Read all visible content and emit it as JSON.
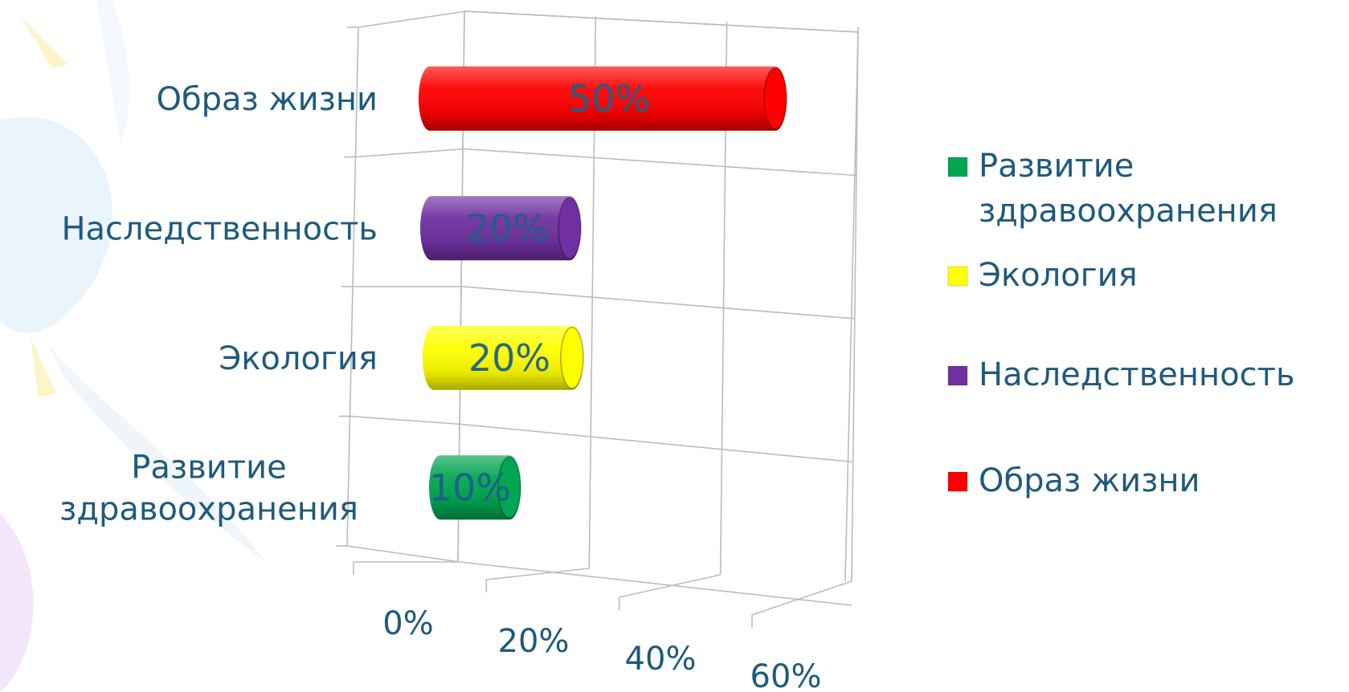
{
  "chart_data": {
    "type": "bar",
    "orientation": "horizontal",
    "style": "3d-cylinder",
    "categories": [
      [
        "Развитие",
        "здравоохранения"
      ],
      [
        "Экология"
      ],
      [
        "Наследственность"
      ],
      [
        "Образ жизни"
      ]
    ],
    "values": [
      10,
      20,
      20,
      50
    ],
    "data_labels": [
      "10%",
      "20%",
      "20%",
      "50%"
    ],
    "colors": [
      "#00a651",
      "#ffff00",
      "#7030a0",
      "#ff0000"
    ],
    "xlim": [
      0,
      60
    ],
    "xticks": [
      "0%",
      "20%",
      "40%",
      "60%"
    ],
    "grid": true,
    "legend": {
      "position": "right",
      "entries": [
        {
          "label": [
            "Развитие",
            "здравоохранения"
          ],
          "color": "#00a651"
        },
        {
          "label": [
            "Экология"
          ],
          "color": "#ffff00"
        },
        {
          "label": [
            "Наследственность"
          ],
          "color": "#7030a0"
        },
        {
          "label": [
            "Образ жизни"
          ],
          "color": "#ff0000"
        }
      ]
    }
  }
}
